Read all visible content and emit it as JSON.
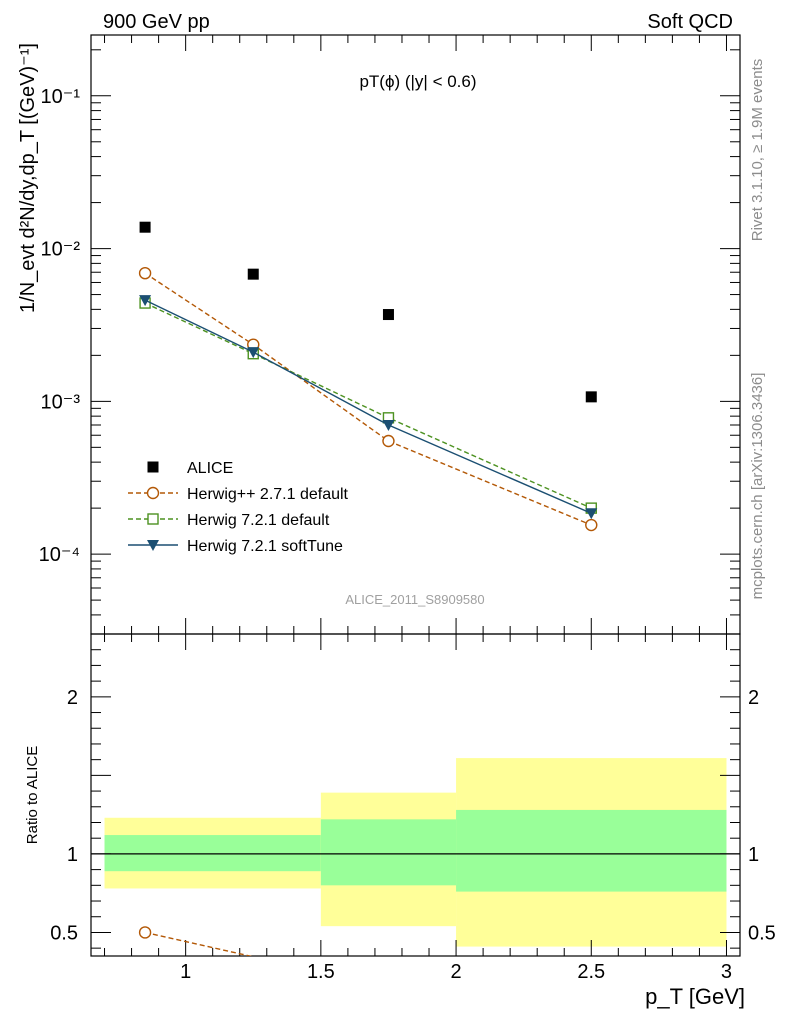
{
  "header": {
    "left": "900 GeV pp",
    "right": "Soft QCD"
  },
  "side_labels": {
    "rivet": "Rivet 3.1.10, ≥ 1.9M events",
    "mcplots": "mcplots.cern.ch [arXiv:1306.3436]"
  },
  "chart_data": [
    {
      "type": "scatter",
      "panel": "main",
      "title": "pT(ϕ) (|y| < 0.6)",
      "ylabel": "1/N_evt d²N/dy,dp_T [(GeV)⁻¹]",
      "xlabel": "",
      "xlim": [
        0.65,
        3.05
      ],
      "ylim": [
        3e-05,
        0.25
      ],
      "yscale": "log",
      "yticks": [
        "10⁻⁴",
        "10⁻³",
        "10⁻²",
        "10⁻¹"
      ],
      "watermark": "ALICE_2011_S8909580",
      "legend_position": "bottom-left",
      "series": [
        {
          "name": "ALICE",
          "marker": "filled-square",
          "line": "none",
          "color": "#000000",
          "x": [
            0.85,
            1.25,
            1.75,
            2.5
          ],
          "y": [
            0.0138,
            0.0068,
            0.0037,
            0.00107
          ]
        },
        {
          "name": "Herwig++ 2.7.1 default",
          "marker": "open-circle",
          "line": "dashed",
          "color": "#b35806",
          "x": [
            0.85,
            1.25,
            1.75,
            2.5
          ],
          "y": [
            0.0069,
            0.00235,
            0.00055,
            0.000155
          ]
        },
        {
          "name": "Herwig 7.2.1 default",
          "marker": "open-square",
          "line": "dashed",
          "color": "#4d9221",
          "x": [
            0.85,
            1.25,
            1.75,
            2.5
          ],
          "y": [
            0.0044,
            0.00205,
            0.00078,
            0.0002
          ]
        },
        {
          "name": "Herwig 7.2.1 softTune",
          "marker": "filled-triangle-down",
          "line": "solid",
          "color": "#1b4f72",
          "x": [
            0.85,
            1.25,
            1.75,
            2.5
          ],
          "y": [
            0.0046,
            0.0021,
            0.0007,
            0.000185
          ]
        }
      ]
    },
    {
      "type": "line",
      "panel": "ratio",
      "ylabel": "Ratio to ALICE",
      "xlabel": "p_T [GeV]",
      "xlim": [
        0.65,
        3.05
      ],
      "ylim": [
        0.35,
        2.4
      ],
      "xticks": [
        "1",
        "1.5",
        "2",
        "2.5",
        "3"
      ],
      "yticks": [
        "0.5",
        "1",
        "2"
      ],
      "bands": [
        {
          "x0": 0.7,
          "x1": 1.5,
          "inner": [
            0.89,
            1.12
          ],
          "outer": [
            0.78,
            1.23
          ]
        },
        {
          "x0": 1.5,
          "x1": 2.0,
          "inner": [
            0.8,
            1.22
          ],
          "outer": [
            0.54,
            1.39
          ]
        },
        {
          "x0": 2.0,
          "x1": 3.0,
          "inner": [
            0.76,
            1.28
          ],
          "outer": [
            0.41,
            1.61
          ]
        }
      ],
      "band_colors": {
        "inner": "#99ff99",
        "outer": "#ffff99"
      },
      "series": [
        {
          "name": "Herwig++ 2.7.1 default",
          "color": "#b35806",
          "x": [
            0.85,
            1.25
          ],
          "y": [
            0.5,
            0.345
          ]
        }
      ]
    }
  ]
}
